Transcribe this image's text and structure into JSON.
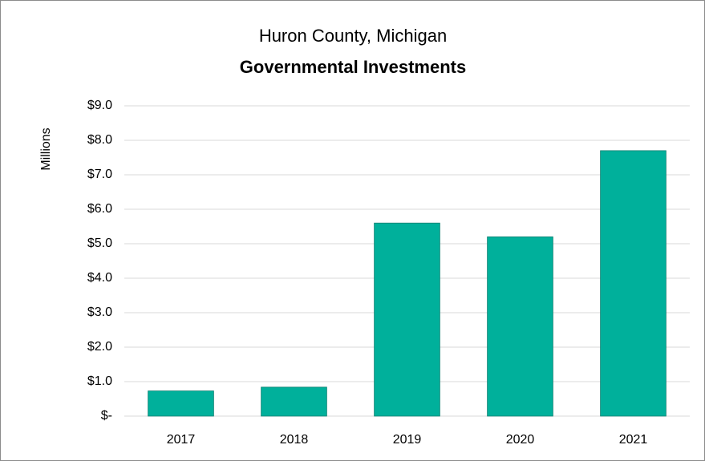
{
  "chart_data": {
    "type": "bar",
    "title": "Huron County, Michigan",
    "subtitle": "Governmental Investments",
    "y_label": "Millions",
    "categories": [
      "2017",
      "2018",
      "2019",
      "2020",
      "2021"
    ],
    "values": [
      0.73,
      0.84,
      5.6,
      5.2,
      7.7
    ],
    "color": "#00b09b",
    "ylim": [
      0,
      9
    ],
    "yticks": [
      {
        "value": 0,
        "label": "$-"
      },
      {
        "value": 1,
        "label": "$1.0"
      },
      {
        "value": 2,
        "label": "$2.0"
      },
      {
        "value": 3,
        "label": "$3.0"
      },
      {
        "value": 4,
        "label": "$4.0"
      },
      {
        "value": 5,
        "label": "$5.0"
      },
      {
        "value": 6,
        "label": "$6.0"
      },
      {
        "value": 7,
        "label": "$7.0"
      },
      {
        "value": 8,
        "label": "$8.0"
      },
      {
        "value": 9,
        "label": "$9.0"
      }
    ],
    "grid": true
  }
}
